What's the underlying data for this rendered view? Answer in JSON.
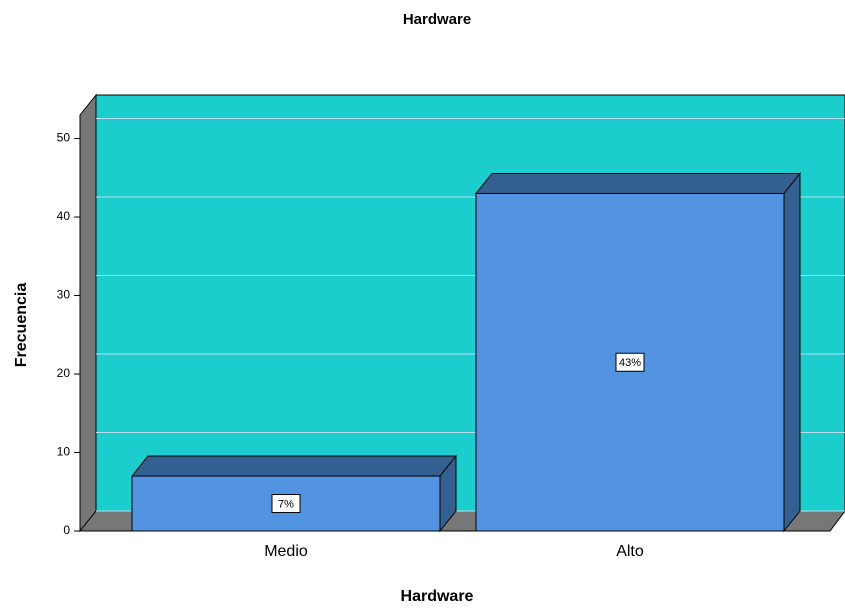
{
  "chart_data": {
    "type": "bar3d",
    "title": "Hardware",
    "x_label": "Hardware",
    "y_label": "Frecuencia",
    "categories": [
      "Medio",
      "Alto"
    ],
    "values": [
      7,
      43
    ],
    "value_labels": [
      "7%",
      "43%"
    ],
    "color": "#5294e2",
    "side_color": "#335f91",
    "wall_color": "#1ccdcd",
    "ylim": [
      0,
      53
    ],
    "yticks": [
      0,
      10,
      20,
      30,
      40,
      50
    ],
    "grid": true
  }
}
